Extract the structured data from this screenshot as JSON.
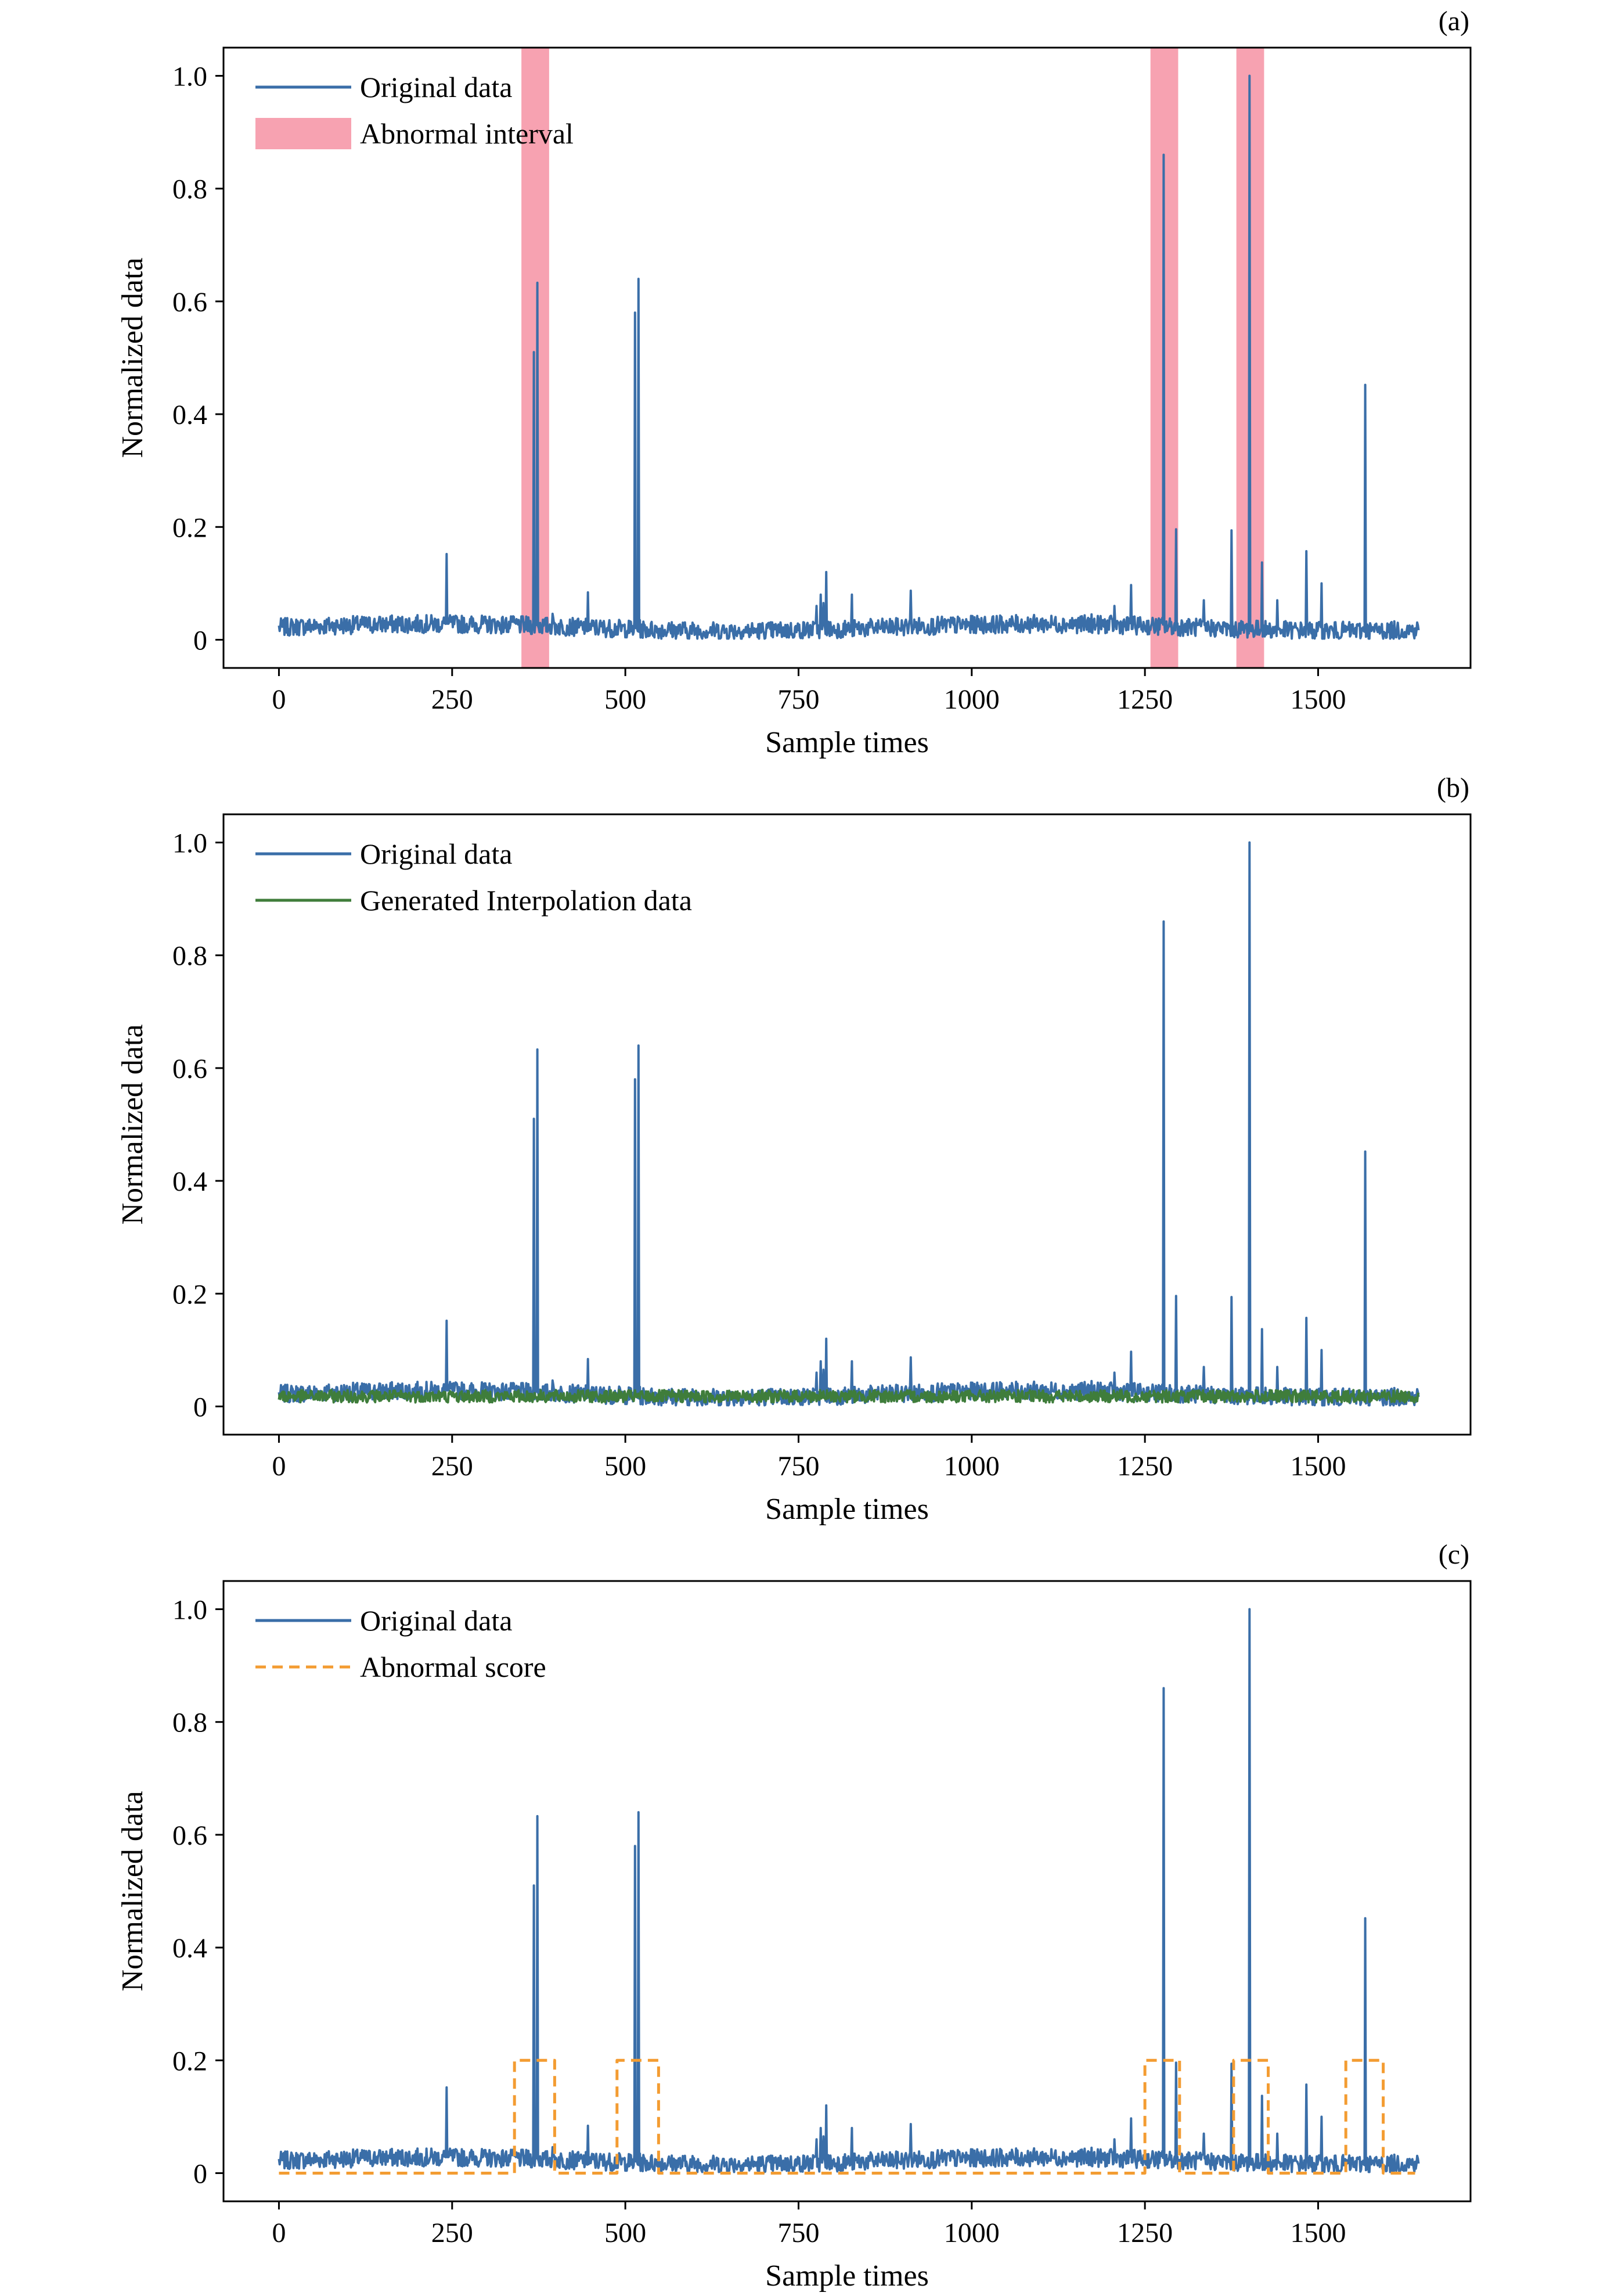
{
  "colors": {
    "original": "#3a6ea8",
    "interp": "#3f7d3b",
    "score": "#f39c32",
    "abnormal": "#f7a2b1"
  },
  "chart_data": [
    {
      "type": "line",
      "panel_label": "(a)",
      "xlabel": "Sample times",
      "ylabel": "Normalized data",
      "xlim": [
        -80,
        1720
      ],
      "ylim": [
        -0.05,
        1.05
      ],
      "xticks": [
        0,
        250,
        500,
        750,
        1000,
        1250,
        1500
      ],
      "xtick_labels": [
        "0",
        "250",
        "500",
        "750",
        "1000",
        "1250",
        "1500"
      ],
      "yticks": [
        0,
        0.2,
        0.4,
        0.6,
        0.8,
        1.0
      ],
      "ytick_labels": [
        "0",
        "0.2",
        "0.4",
        "0.6",
        "0.8",
        "1.0"
      ],
      "legend": {
        "position": "upper-left",
        "entries": [
          {
            "label": "Original data",
            "kind": "line",
            "color_key": "original"
          },
          {
            "label": "Abnormal interval",
            "kind": "patch",
            "color_key": "abnormal"
          }
        ]
      },
      "series": [
        {
          "name": "Original data",
          "kind": "signal",
          "color_key": "original"
        }
      ],
      "spans": [
        [
          350,
          390
        ],
        [
          1258,
          1298
        ],
        [
          1382,
          1422
        ]
      ]
    },
    {
      "type": "line",
      "panel_label": "(b)",
      "xlabel": "Sample times",
      "ylabel": "Normalized data",
      "xlim": [
        -80,
        1720
      ],
      "ylim": [
        -0.05,
        1.05
      ],
      "xticks": [
        0,
        250,
        500,
        750,
        1000,
        1250,
        1500
      ],
      "xtick_labels": [
        "0",
        "250",
        "500",
        "750",
        "1000",
        "1250",
        "1500"
      ],
      "yticks": [
        0,
        0.2,
        0.4,
        0.6,
        0.8,
        1.0
      ],
      "ytick_labels": [
        "0",
        "0.2",
        "0.4",
        "0.6",
        "0.8",
        "1.0"
      ],
      "legend": {
        "position": "upper-left",
        "entries": [
          {
            "label": "Original data",
            "kind": "line",
            "color_key": "original"
          },
          {
            "label": "Generated Interpolation data",
            "kind": "line",
            "color_key": "interp"
          }
        ]
      },
      "series": [
        {
          "name": "Original data",
          "kind": "signal",
          "color_key": "original"
        },
        {
          "name": "Generated Interpolation data",
          "kind": "interp",
          "color_key": "interp"
        }
      ]
    },
    {
      "type": "line",
      "panel_label": "(c)",
      "xlabel": "Sample times",
      "ylabel": "Normalized data",
      "xlim": [
        -80,
        1720
      ],
      "ylim": [
        -0.05,
        1.05
      ],
      "xticks": [
        0,
        250,
        500,
        750,
        1000,
        1250,
        1500
      ],
      "xtick_labels": [
        "0",
        "250",
        "500",
        "750",
        "1000",
        "1250",
        "1500"
      ],
      "yticks": [
        0,
        0.2,
        0.4,
        0.6,
        0.8,
        1.0
      ],
      "ytick_labels": [
        "0",
        "0.2",
        "0.4",
        "0.6",
        "0.8",
        "1.0"
      ],
      "legend": {
        "position": "upper-left",
        "entries": [
          {
            "label": "Original data",
            "kind": "line",
            "color_key": "original"
          },
          {
            "label": "Abnormal score",
            "kind": "dashed",
            "color_key": "score"
          }
        ]
      },
      "series": [
        {
          "name": "Original data",
          "kind": "signal",
          "color_key": "original"
        },
        {
          "name": "Abnormal score",
          "kind": "step",
          "color_key": "score",
          "x": [
            0,
            340,
            340,
            398,
            398,
            488,
            488,
            548,
            548,
            1250,
            1250,
            1300,
            1300,
            1378,
            1378,
            1428,
            1428,
            1540,
            1540,
            1594,
            1594,
            1640
          ],
          "y": [
            0,
            0,
            0.2,
            0.2,
            0,
            0,
            0.2,
            0.2,
            0,
            0,
            0.2,
            0.2,
            0,
            0,
            0.2,
            0.2,
            0,
            0,
            0.2,
            0.2,
            0,
            0
          ]
        }
      ]
    }
  ],
  "signal": {
    "n_samples": 1646,
    "baseline_mean": 0.022,
    "peaks": [
      {
        "x": 242,
        "y": 0.152
      },
      {
        "x": 336,
        "y": 0.035
      },
      {
        "x": 368,
        "y": 0.51
      },
      {
        "x": 373,
        "y": 0.633
      },
      {
        "x": 395,
        "y": 0.046
      },
      {
        "x": 446,
        "y": 0.084
      },
      {
        "x": 514,
        "y": 0.58
      },
      {
        "x": 519,
        "y": 0.64
      },
      {
        "x": 776,
        "y": 0.06
      },
      {
        "x": 782,
        "y": 0.08
      },
      {
        "x": 786,
        "y": 0.065
      },
      {
        "x": 790,
        "y": 0.12
      },
      {
        "x": 827,
        "y": 0.08
      },
      {
        "x": 912,
        "y": 0.087
      },
      {
        "x": 1173,
        "y": 0.045
      },
      {
        "x": 1206,
        "y": 0.06
      },
      {
        "x": 1230,
        "y": 0.097
      },
      {
        "x": 1277,
        "y": 0.86
      },
      {
        "x": 1295,
        "y": 0.196
      },
      {
        "x": 1335,
        "y": 0.07
      },
      {
        "x": 1375,
        "y": 0.194
      },
      {
        "x": 1401,
        "y": 1.0
      },
      {
        "x": 1419,
        "y": 0.137
      },
      {
        "x": 1441,
        "y": 0.07
      },
      {
        "x": 1483,
        "y": 0.157
      },
      {
        "x": 1505,
        "y": 0.1
      },
      {
        "x": 1568,
        "y": 0.452
      }
    ]
  }
}
